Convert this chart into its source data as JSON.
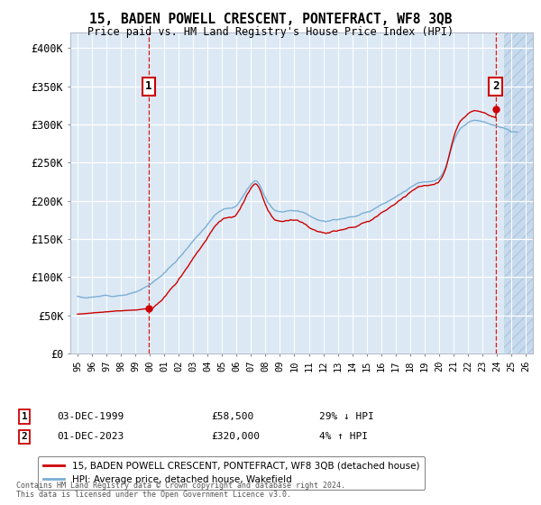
{
  "title": "15, BADEN POWELL CRESCENT, PONTEFRACT, WF8 3QB",
  "subtitle": "Price paid vs. HM Land Registry's House Price Index (HPI)",
  "plot_bg_color": "#dce9f5",
  "grid_color": "#ffffff",
  "red_line_color": "#cc0000",
  "blue_line_color": "#7bafd4",
  "vline_color": "#cc0000",
  "sale1_year": 1999.92,
  "sale1_y": 58500,
  "sale2_year": 2023.92,
  "sale2_y": 320000,
  "xmin": 1994.5,
  "xmax": 2026.5,
  "ymin": 0,
  "ymax": 420000,
  "yticks": [
    0,
    50000,
    100000,
    150000,
    200000,
    250000,
    300000,
    350000,
    400000
  ],
  "ytick_labels": [
    "£0",
    "£50K",
    "£100K",
    "£150K",
    "£200K",
    "£250K",
    "£300K",
    "£350K",
    "£400K"
  ],
  "xtick_years": [
    1995,
    1996,
    1997,
    1998,
    1999,
    2000,
    2001,
    2002,
    2003,
    2004,
    2005,
    2006,
    2007,
    2008,
    2009,
    2010,
    2011,
    2012,
    2013,
    2014,
    2015,
    2016,
    2017,
    2018,
    2019,
    2020,
    2021,
    2022,
    2023,
    2024,
    2025,
    2026
  ],
  "hatch_start": 2024.5,
  "legend_label_red": "15, BADEN POWELL CRESCENT, PONTEFRACT, WF8 3QB (detached house)",
  "legend_label_blue": "HPI: Average price, detached house, Wakefield",
  "annotation1_label": "1",
  "annotation1_date": "03-DEC-1999",
  "annotation1_price": "£58,500",
  "annotation1_hpi": "29% ↓ HPI",
  "annotation2_label": "2",
  "annotation2_date": "01-DEC-2023",
  "annotation2_price": "£320,000",
  "annotation2_hpi": "4% ↑ HPI",
  "footer": "Contains HM Land Registry data © Crown copyright and database right 2024.\nThis data is licensed under the Open Government Licence v3.0."
}
